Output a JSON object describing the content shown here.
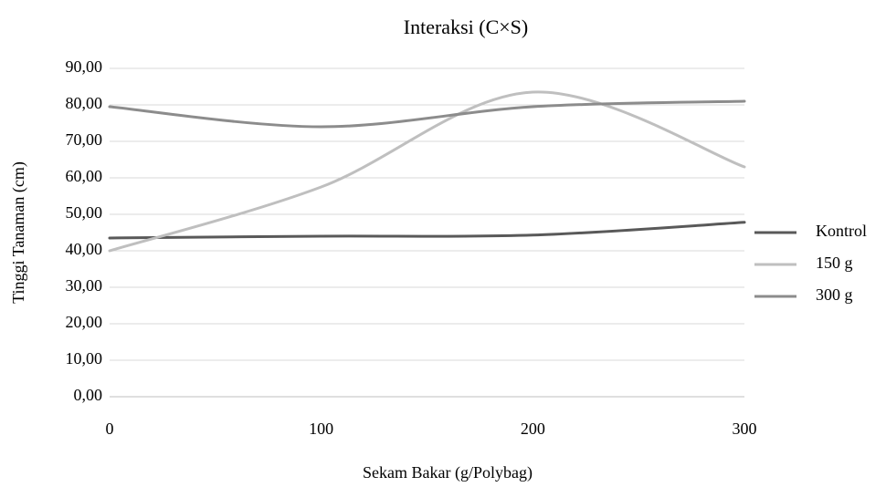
{
  "chart_data": {
    "type": "line",
    "title": "Interaksi (C×S)",
    "x_label": "Sekam Bakar (g/Polybag)",
    "y_label": "Tinggi Tanaman (cm)",
    "categories": [
      "0",
      "100",
      "200",
      "300"
    ],
    "series": [
      {
        "name": "Kontrol",
        "color": "#595959",
        "values": [
          43.5,
          44,
          44.3,
          47.8
        ]
      },
      {
        "name": "150 g",
        "color": "#bfbfbf",
        "values": [
          40,
          57.5,
          83.5,
          63
        ]
      },
      {
        "name": "300 g",
        "color": "#8c8c8c",
        "values": [
          79.5,
          74,
          79.5,
          81
        ]
      }
    ],
    "ylim": [
      0,
      90
    ],
    "yticks": [
      {
        "value": 0,
        "label": "0,00"
      },
      {
        "value": 10,
        "label": "10,00"
      },
      {
        "value": 20,
        "label": "20,00"
      },
      {
        "value": 30,
        "label": "30,00"
      },
      {
        "value": 40,
        "label": "40,00"
      },
      {
        "value": 50,
        "label": "50,00"
      },
      {
        "value": 60,
        "label": "60,00"
      },
      {
        "value": 70,
        "label": "70,00"
      },
      {
        "value": 80,
        "label": "80,00"
      },
      {
        "value": 90,
        "label": "90,00"
      }
    ],
    "grid": true,
    "smooth": true,
    "legend": "right"
  }
}
